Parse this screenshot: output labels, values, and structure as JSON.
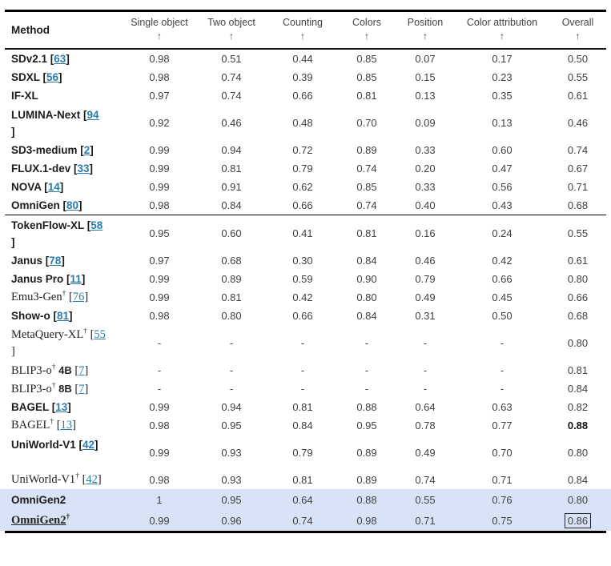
{
  "colors": {
    "link_blue": "#2b7bab",
    "highlight_blue": "#d9e3f7",
    "rule_black": "#000000"
  },
  "table": {
    "columns": [
      {
        "label": "Method",
        "arrow": ""
      },
      {
        "label": "Single object",
        "arrow": "↑"
      },
      {
        "label": "Two object",
        "arrow": "↑"
      },
      {
        "label": "Counting",
        "arrow": "↑"
      },
      {
        "label": "Colors",
        "arrow": "↑"
      },
      {
        "label": "Position",
        "arrow": "↑"
      },
      {
        "label": "Color attribution",
        "arrow": "↑"
      },
      {
        "label": "Overall",
        "arrow": "↑"
      }
    ],
    "rows": [
      {
        "name": "SDv2.1",
        "cite": "63",
        "values": [
          "0.98",
          "0.51",
          "0.44",
          "0.85",
          "0.07",
          "0.17",
          "0.50"
        ]
      },
      {
        "name": "SDXL",
        "cite": "56",
        "values": [
          "0.98",
          "0.74",
          "0.39",
          "0.85",
          "0.15",
          "0.23",
          "0.55"
        ]
      },
      {
        "name": "IF-XL",
        "values": [
          "0.97",
          "0.74",
          "0.66",
          "0.81",
          "0.13",
          "0.35",
          "0.61"
        ]
      },
      {
        "name": "LUMINA-Next",
        "cite": "94",
        "wrap": true,
        "tall": true,
        "values": [
          "0.92",
          "0.46",
          "0.48",
          "0.70",
          "0.09",
          "0.13",
          "0.46"
        ]
      },
      {
        "name": "SD3-medium",
        "cite": "2",
        "values": [
          "0.99",
          "0.94",
          "0.72",
          "0.89",
          "0.33",
          "0.60",
          "0.74"
        ]
      },
      {
        "name": "FLUX.1-dev",
        "cite": "33",
        "values": [
          "0.99",
          "0.81",
          "0.79",
          "0.74",
          "0.20",
          "0.47",
          "0.67"
        ]
      },
      {
        "name": "NOVA",
        "cite": "14",
        "values": [
          "0.99",
          "0.91",
          "0.62",
          "0.85",
          "0.33",
          "0.56",
          "0.71"
        ]
      },
      {
        "name": "OmniGen",
        "cite": "80",
        "divider": true,
        "values": [
          "0.98",
          "0.84",
          "0.66",
          "0.74",
          "0.40",
          "0.43",
          "0.68"
        ]
      },
      {
        "name": "TokenFlow-XL",
        "cite": "58",
        "wrap": true,
        "tall": true,
        "values": [
          "0.95",
          "0.60",
          "0.41",
          "0.81",
          "0.16",
          "0.24",
          "0.55"
        ]
      },
      {
        "name": "Janus",
        "cite": "78",
        "values": [
          "0.97",
          "0.68",
          "0.30",
          "0.84",
          "0.46",
          "0.42",
          "0.61"
        ]
      },
      {
        "name": "Janus Pro",
        "cite": "11",
        "values": [
          "0.99",
          "0.89",
          "0.59",
          "0.90",
          "0.79",
          "0.66",
          "0.80"
        ]
      },
      {
        "name": "Emu3-Gen",
        "cite": "76",
        "dagger": true,
        "serif": true,
        "values": [
          "0.99",
          "0.81",
          "0.42",
          "0.80",
          "0.49",
          "0.45",
          "0.66"
        ]
      },
      {
        "name": "Show-o",
        "cite": "81",
        "values": [
          "0.98",
          "0.80",
          "0.66",
          "0.84",
          "0.31",
          "0.50",
          "0.68"
        ]
      },
      {
        "name": "MetaQuery-XL",
        "cite": "55",
        "dagger": true,
        "serif": true,
        "wrap": true,
        "tall": true,
        "values": [
          "-",
          "-",
          "-",
          "-",
          "-",
          "-",
          "0.80"
        ]
      },
      {
        "name": "BLIP3-o",
        "size": "4B",
        "cite": "7",
        "dagger": true,
        "serif": true,
        "values": [
          "-",
          "-",
          "-",
          "-",
          "-",
          "-",
          "0.81"
        ]
      },
      {
        "name": "BLIP3-o",
        "size": "8B",
        "cite": "7",
        "dagger": true,
        "serif": true,
        "values": [
          "-",
          "-",
          "-",
          "-",
          "-",
          "-",
          "0.84"
        ]
      },
      {
        "name": "BAGEL",
        "cite": "13",
        "values": [
          "0.99",
          "0.94",
          "0.81",
          "0.88",
          "0.64",
          "0.63",
          "0.82"
        ]
      },
      {
        "name": "BAGEL",
        "cite": "13",
        "dagger": true,
        "serif": true,
        "overall_bold": true,
        "values": [
          "0.98",
          "0.95",
          "0.84",
          "0.95",
          "0.78",
          "0.77",
          "0.88"
        ]
      },
      {
        "name": "UniWorld-V1",
        "cite": "42",
        "tall": true,
        "values": [
          "0.99",
          "0.93",
          "0.79",
          "0.89",
          "0.49",
          "0.70",
          "0.80"
        ]
      },
      {
        "name": "UniWorld-V1",
        "cite": "42",
        "dagger": true,
        "serif": true,
        "values": [
          "0.98",
          "0.93",
          "0.81",
          "0.89",
          "0.74",
          "0.71",
          "0.84"
        ]
      },
      {
        "name": "OmniGen2",
        "highlight": true,
        "values": [
          "1",
          "0.95",
          "0.64",
          "0.88",
          "0.55",
          "0.76",
          "0.80"
        ]
      },
      {
        "name": "OmniGen2",
        "dagger": true,
        "serif": true,
        "serif_bold": true,
        "underline": true,
        "highlight": true,
        "last": true,
        "overall_box": true,
        "values": [
          "0.99",
          "0.96",
          "0.74",
          "0.98",
          "0.71",
          "0.75",
          "0.86"
        ]
      }
    ]
  }
}
